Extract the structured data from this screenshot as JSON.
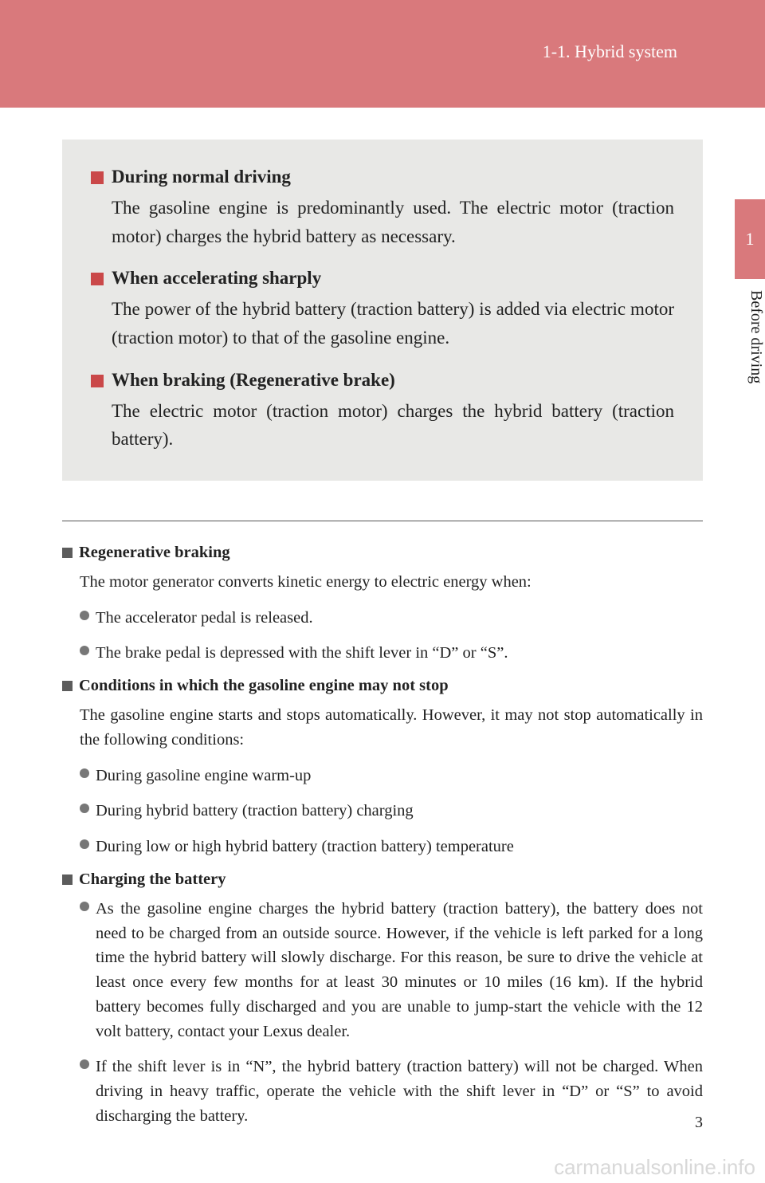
{
  "header": {
    "section": "1-1. Hybrid system"
  },
  "sideTab": {
    "num": "1",
    "label": "Before driving"
  },
  "grayItems": [
    {
      "title": "During normal driving",
      "body": "The gasoline engine is predominantly used. The electric motor (traction motor) charges the hybrid battery as necessary."
    },
    {
      "title": "When accelerating sharply",
      "body": "The power of the hybrid battery (traction battery) is added via electric motor (traction motor) to that of the gasoline engine."
    },
    {
      "title": "When braking (Regenerative brake)",
      "body": "The electric motor (traction motor) charges the hybrid battery (traction battery)."
    }
  ],
  "sub1": {
    "title": "Regenerative braking",
    "body": "The motor generator converts kinetic energy to electric energy when:",
    "bullets": [
      "The accelerator pedal is released.",
      "The brake pedal is depressed with the shift lever in “D” or “S”."
    ]
  },
  "sub2": {
    "title": "Conditions in which the gasoline engine may not stop",
    "body": "The gasoline engine starts and stops automatically. However, it may not stop automatically in the following conditions:",
    "bullets": [
      "During gasoline engine warm-up",
      "During hybrid battery (traction battery) charging",
      "During low or high hybrid battery (traction battery) temperature"
    ]
  },
  "sub3": {
    "title": "Charging the battery",
    "bullets": [
      "As the gasoline engine charges the hybrid battery (traction battery), the battery does not need to be charged from an outside source. However, if the vehicle is left parked for a long time the hybrid battery will slowly discharge. For this reason, be sure to drive the vehicle at least once every few months for at least 30 minutes or 10 miles (16 km). If the hybrid battery becomes fully discharged and you are unable to jump-start the vehicle with the 12 volt battery, contact your Lexus dealer.",
      "If the shift lever is in “N”, the hybrid battery (traction battery) will not be charged. When driving in heavy traffic, operate the vehicle with the shift lever in “D” or “S” to avoid discharging the battery."
    ]
  },
  "pageNum": "3",
  "watermark": "carmanualsonline.info",
  "colors": {
    "headerBg": "#d9797c",
    "redSq": "#ca4849",
    "grayBox": "#e8e8e6",
    "graySq": "#5c5c5c",
    "grayDot": "#777777"
  }
}
